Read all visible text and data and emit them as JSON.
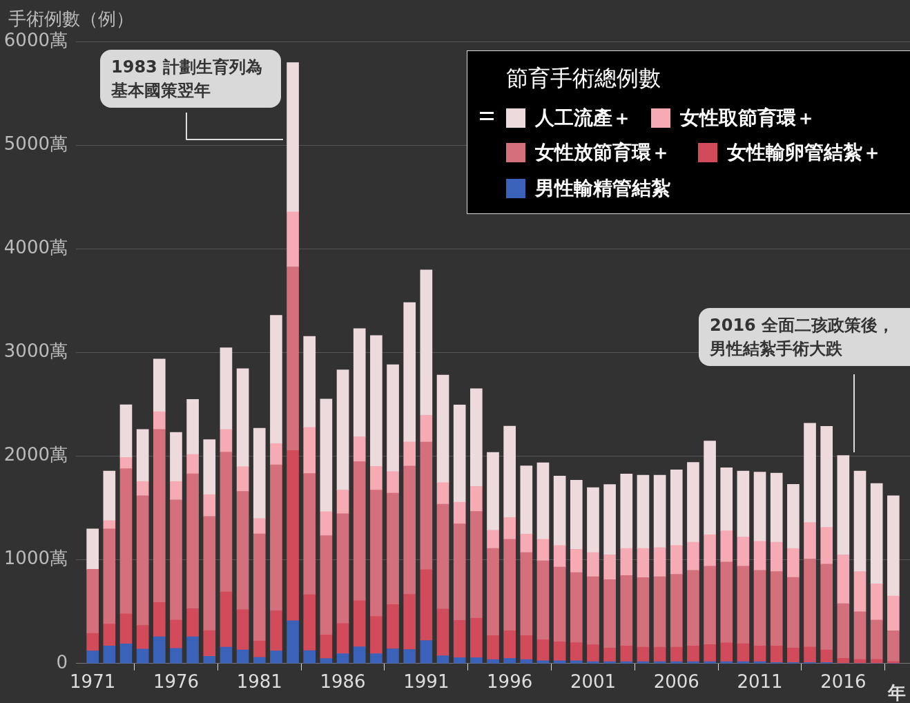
{
  "chart_data": {
    "type": "bar",
    "stacked": true,
    "ylabel": "手術例數（例）",
    "xlabel": "年",
    "legend_title": "節育手術總例數",
    "legend": "top right",
    "grid": "y",
    "x": [
      1971,
      1972,
      1973,
      1974,
      1975,
      1976,
      1977,
      1978,
      1979,
      1980,
      1981,
      1982,
      1983,
      1984,
      1985,
      1986,
      1987,
      1988,
      1989,
      1990,
      1991,
      1992,
      1993,
      1994,
      1995,
      1996,
      1997,
      1998,
      1999,
      2000,
      2001,
      2002,
      2003,
      2004,
      2005,
      2006,
      2007,
      2008,
      2009,
      2010,
      2011,
      2012,
      2013,
      2014,
      2015,
      2016,
      2017,
      2018,
      2019
    ],
    "xlim": [
      1970,
      2020
    ],
    "xticks": [
      1971,
      1976,
      1981,
      1986,
      1991,
      1996,
      2001,
      2006,
      2011,
      2016
    ],
    "ylim": [
      0,
      6000
    ],
    "yticks": [
      0,
      {
        "value": 1000,
        "label": "1000萬"
      },
      {
        "value": 2000,
        "label": "2000萬"
      },
      {
        "value": 3000,
        "label": "3000萬"
      },
      {
        "value": 4000,
        "label": "4000萬"
      },
      {
        "value": 5000,
        "label": "5000萬"
      },
      {
        "value": 6000,
        "label": "6000萬"
      }
    ],
    "series": [
      {
        "name": "男性輸精管結紮",
        "color": "#3a62b8",
        "values": [
          122,
          169,
          189,
          140,
          258,
          146,
          258,
          69,
          158,
          131,
          60,
          122,
          413,
          124,
          48,
          94,
          161,
          94,
          142,
          135,
          222,
          74,
          56,
          56,
          38,
          49,
          38,
          27,
          27,
          27,
          18,
          18,
          18,
          18,
          18,
          18,
          18,
          18,
          18,
          18,
          18,
          9,
          9,
          9,
          9,
          0,
          0,
          0,
          0
        ]
      },
      {
        "name": "女性輸卵管結紮＋",
        "color": "#d14b5b",
        "values": [
          169,
          212,
          290,
          227,
          332,
          273,
          272,
          249,
          533,
          388,
          158,
          386,
          1641,
          540,
          228,
          292,
          445,
          360,
          427,
          532,
          684,
          452,
          360,
          381,
          232,
          268,
          232,
          203,
          183,
          174,
          163,
          131,
          151,
          140,
          140,
          140,
          152,
          165,
          181,
          174,
          152,
          161,
          141,
          150,
          123,
          49,
          40,
          40,
          20
        ]
      },
      {
        "name": "女性放節育環＋",
        "color": "#d4707c",
        "values": [
          618,
          918,
          1400,
          1251,
          1668,
          1159,
          1300,
          1101,
          1348,
          1141,
          1032,
          1408,
          1771,
          1169,
          957,
          1059,
          1341,
          1219,
          1074,
          1238,
          1231,
          1010,
          931,
          1030,
          840,
          882,
          800,
          760,
          720,
          677,
          657,
          660,
          680,
          671,
          680,
          702,
          729,
          756,
          780,
          747,
          729,
          717,
          680,
          849,
          827,
          529,
          460,
          379,
          297
        ]
      },
      {
        "name": "女性取節育環＋",
        "color": "#f5aab4",
        "values": [
          0,
          80,
          109,
          138,
          171,
          178,
          187,
          210,
          219,
          239,
          149,
          206,
          531,
          445,
          232,
          228,
          240,
          228,
          209,
          232,
          258,
          209,
          209,
          240,
          176,
          210,
          178,
          209,
          209,
          223,
          232,
          239,
          261,
          281,
          281,
          279,
          271,
          303,
          301,
          281,
          280,
          283,
          280,
          352,
          354,
          470,
          387,
          350,
          334
        ]
      },
      {
        "name": "人工流產＋",
        "color": "#ecdadd",
        "values": [
          390,
          477,
          508,
          502,
          509,
          473,
          530,
          530,
          787,
          945,
          870,
          1237,
          1440,
          878,
          1086,
          1159,
          1044,
          1262,
          1030,
          1345,
          1402,
          1038,
          938,
          943,
          751,
          880,
          658,
          738,
          669,
          667,
          626,
          679,
          718,
          707,
          698,
          729,
          769,
          905,
          608,
          637,
          667,
          667,
          618,
          958,
          974,
          958,
          970,
          968,
          968
        ]
      }
    ],
    "annotations": [
      "1983 計劃生育列為基本國策翌年",
      "2016 全面二孩政策後，男性結紮手術大跌"
    ]
  }
}
